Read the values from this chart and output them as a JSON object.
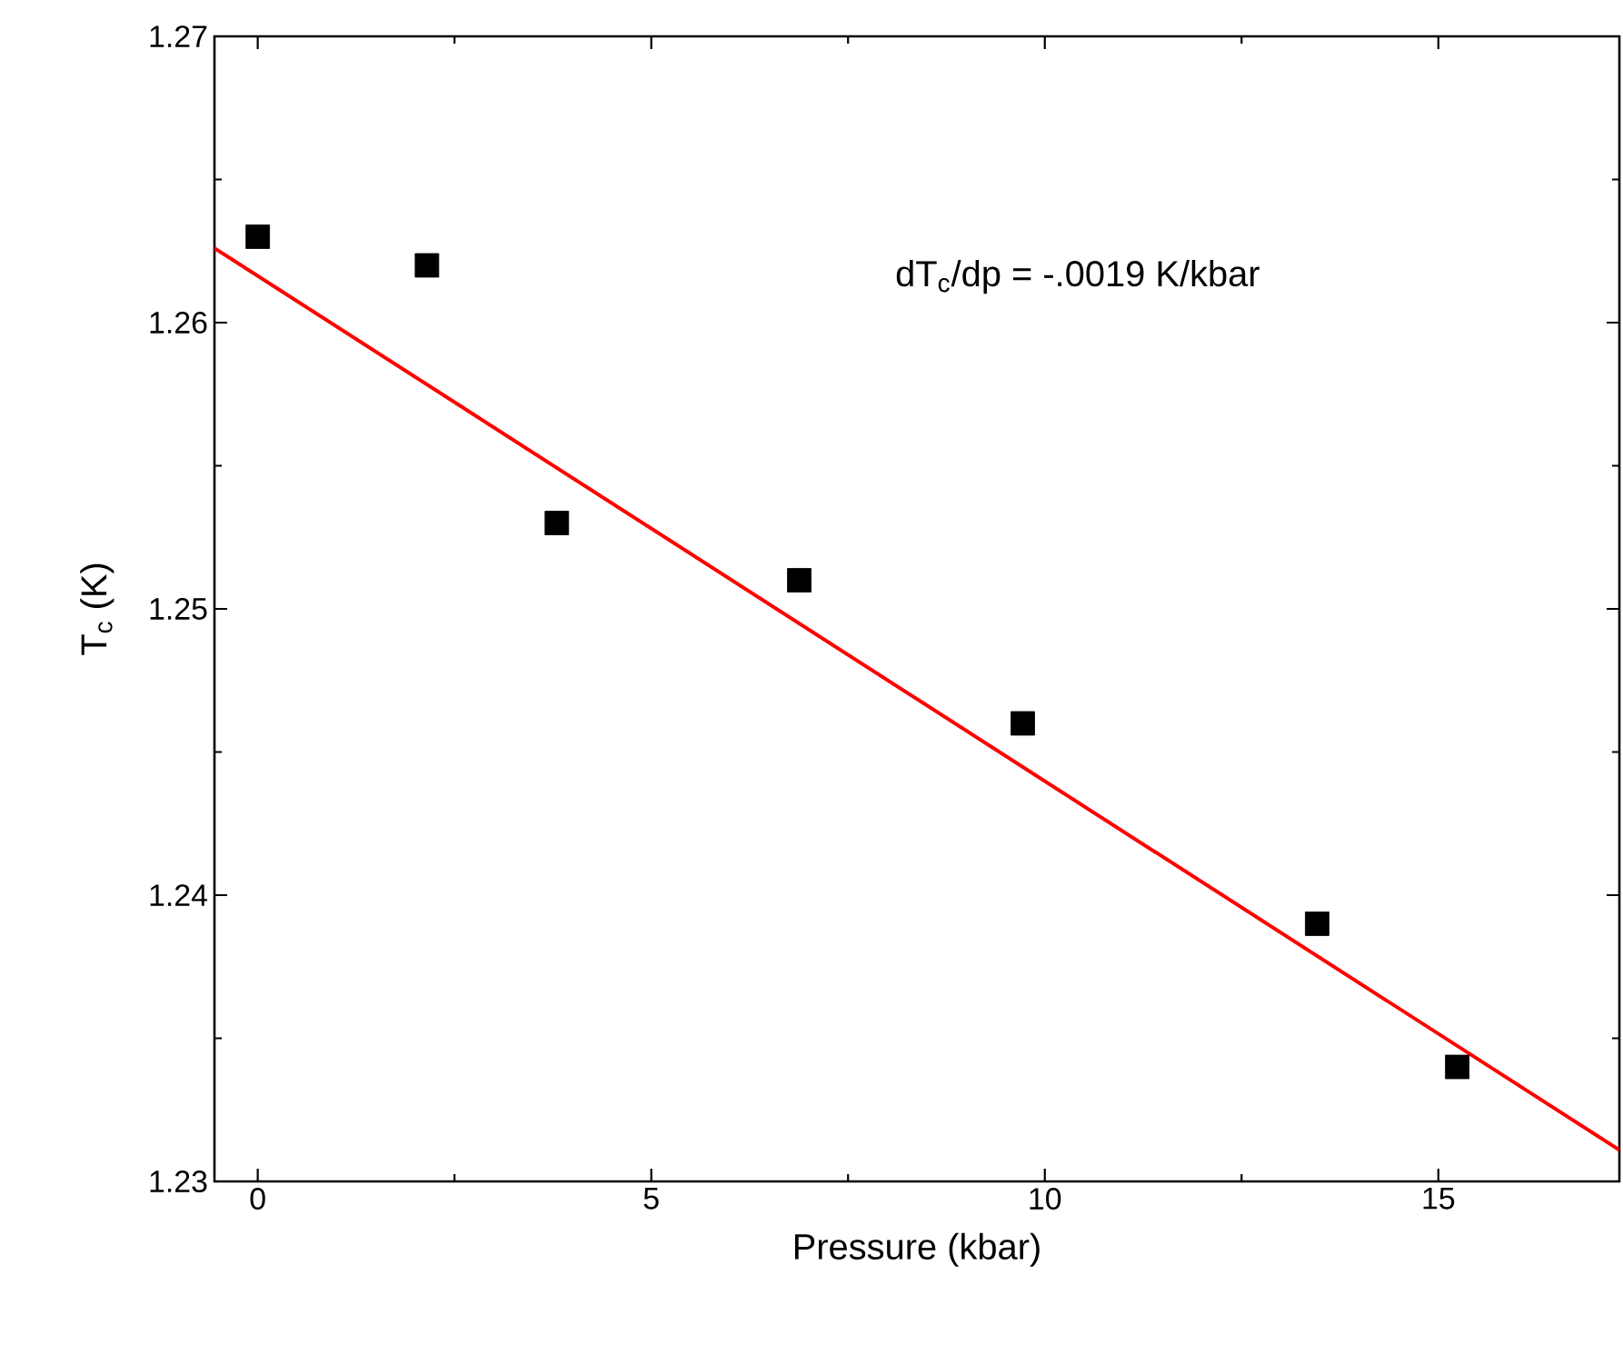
{
  "chart_data": {
    "type": "scatter",
    "xlabel": "Pressure (kbar)",
    "ylabel": "T$_{c}$ (K)",
    "annotations": [
      "dT$_{c}$/dp = -.0019 K/kbar"
    ],
    "x": [
      0,
      2.15,
      3.8,
      6.88,
      9.72,
      13.46,
      15.24
    ],
    "series": [
      {
        "color": "#000000",
        "marker": "square",
        "values": [
          1.263,
          1.262,
          1.253,
          1.251,
          1.246,
          1.239,
          1.234
        ]
      },
      {
        "type": "line",
        "color": "#ff0000",
        "marker": "none",
        "line_style": "solid",
        "x": [
          -0.55,
          17.3
        ],
        "values": [
          1.2626,
          1.2311
        ]
      }
    ],
    "xlim": [
      -0.55,
      17.3
    ],
    "ylim": [
      1.23,
      1.27
    ],
    "xticks": [
      0,
      5,
      10,
      15
    ],
    "yticks": [
      1.23,
      1.24,
      1.25,
      1.26,
      1.27
    ],
    "grid": false
  }
}
